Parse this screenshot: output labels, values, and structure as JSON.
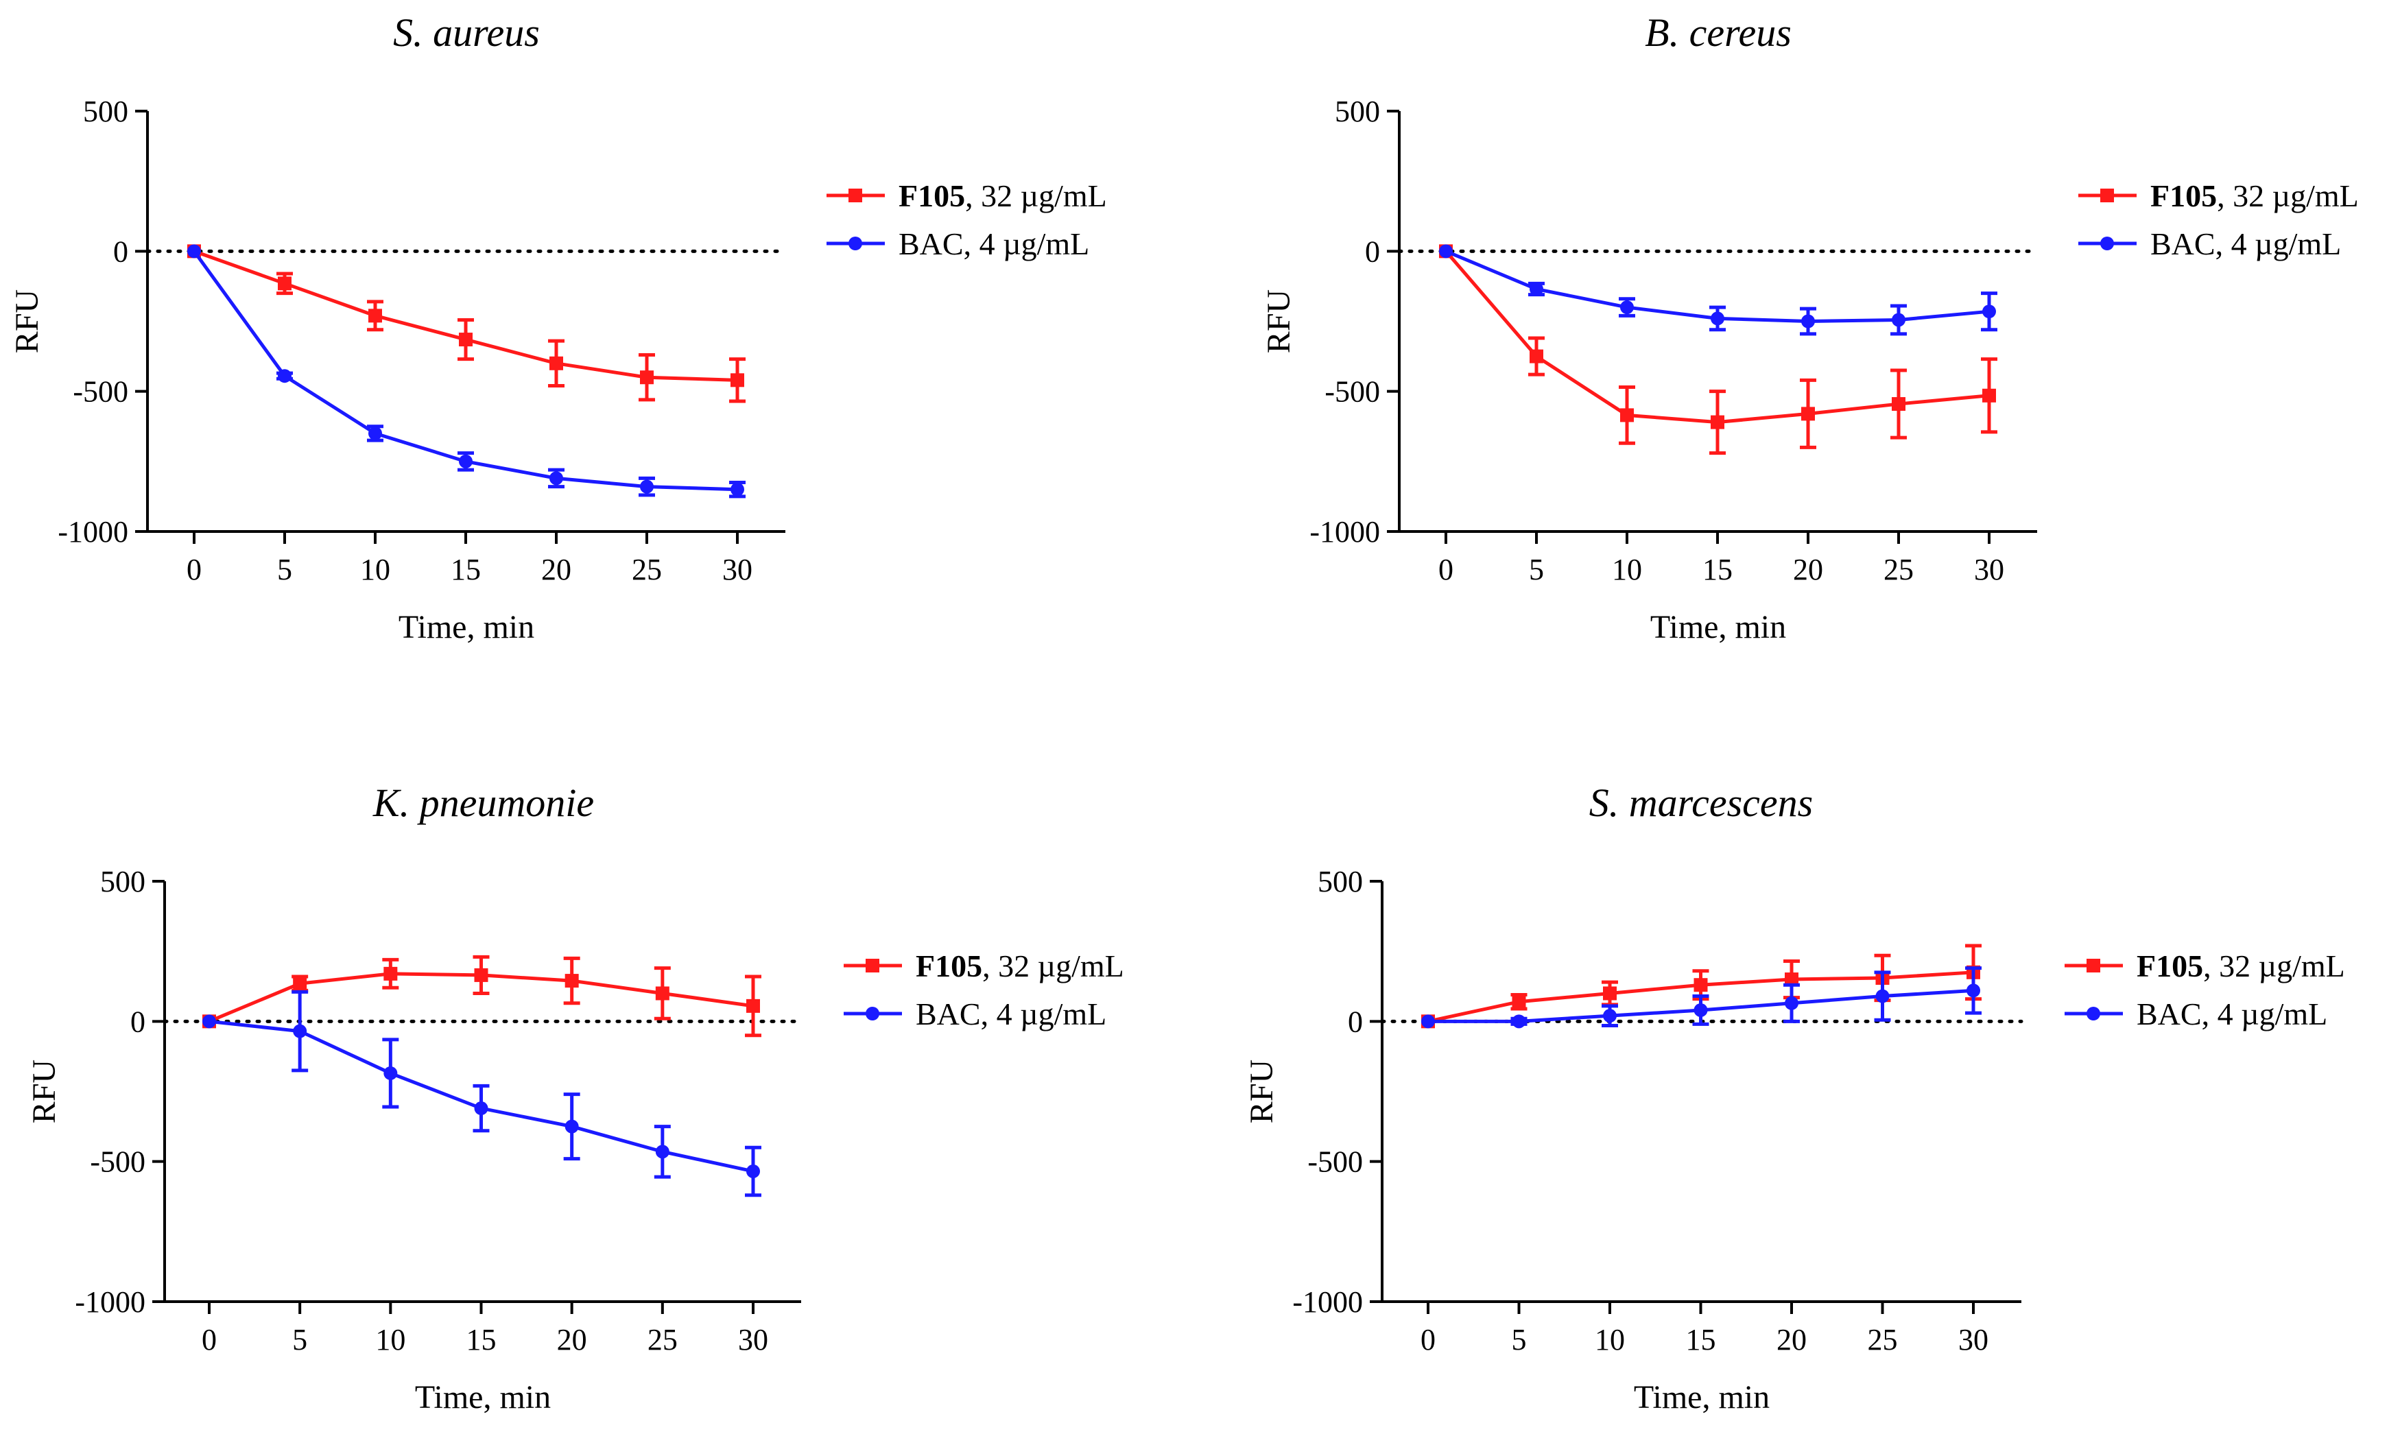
{
  "chart_data": [
    {
      "type": "line",
      "title": "S. aureus",
      "xlabel": "Time, min",
      "ylabel": "RFU",
      "x": [
        0,
        5,
        10,
        15,
        20,
        25,
        30
      ],
      "xticks": [
        "0",
        "5",
        "10",
        "15",
        "20",
        "25",
        "30"
      ],
      "yticks": [
        "500",
        "0",
        "-500",
        "-1000"
      ],
      "ylim": [
        -1000,
        500
      ],
      "reference_line": 0,
      "series": [
        {
          "name": "F105",
          "name_suffix": ", 32 µg/mL",
          "color": "#ff1a1a",
          "marker": "square",
          "values": [
            0,
            -115,
            -230,
            -315,
            -400,
            -450,
            -460
          ],
          "errors": [
            0,
            35,
            50,
            70,
            80,
            80,
            75
          ]
        },
        {
          "name": "BAC",
          "name_suffix": ", 4 µg/mL",
          "color": "#1a1aff",
          "marker": "circle",
          "values": [
            0,
            -445,
            -650,
            -750,
            -810,
            -840,
            -850
          ],
          "errors": [
            0,
            10,
            25,
            30,
            30,
            30,
            25
          ]
        }
      ]
    },
    {
      "type": "line",
      "title": "B. cereus",
      "xlabel": "Time, min",
      "ylabel": "RFU",
      "x": [
        0,
        5,
        10,
        15,
        20,
        25,
        30
      ],
      "xticks": [
        "0",
        "5",
        "10",
        "15",
        "20",
        "25",
        "30"
      ],
      "yticks": [
        "500",
        "0",
        "-500",
        "-1000"
      ],
      "ylim": [
        -1000,
        500
      ],
      "reference_line": 0,
      "series": [
        {
          "name": "F105",
          "name_suffix": ", 32 µg/mL",
          "color": "#ff1a1a",
          "marker": "square",
          "values": [
            0,
            -375,
            -585,
            -610,
            -580,
            -545,
            -515
          ],
          "errors": [
            0,
            65,
            100,
            110,
            120,
            120,
            130
          ]
        },
        {
          "name": "BAC",
          "name_suffix": ", 4 µg/mL",
          "color": "#1a1aff",
          "marker": "circle",
          "values": [
            0,
            -135,
            -200,
            -240,
            -250,
            -245,
            -215
          ],
          "errors": [
            0,
            20,
            30,
            40,
            45,
            50,
            65
          ]
        }
      ]
    },
    {
      "type": "line",
      "title": "K. pneumonie",
      "xlabel": "Time, min",
      "ylabel": "RFU",
      "x": [
        0,
        5,
        10,
        15,
        20,
        25,
        30
      ],
      "xticks": [
        "0",
        "5",
        "10",
        "15",
        "20",
        "25",
        "30"
      ],
      "yticks": [
        "500",
        "0",
        "-500",
        "-1000"
      ],
      "ylim": [
        -1000,
        500
      ],
      "reference_line": 0,
      "series": [
        {
          "name": "F105",
          "name_suffix": ", 32 µg/mL",
          "color": "#ff1a1a",
          "marker": "square",
          "values": [
            0,
            135,
            170,
            165,
            145,
            100,
            55
          ],
          "errors": [
            0,
            25,
            50,
            65,
            80,
            90,
            105
          ]
        },
        {
          "name": "BAC",
          "name_suffix": ", 4 µg/mL",
          "color": "#1a1aff",
          "marker": "circle",
          "values": [
            0,
            -35,
            -185,
            -310,
            -375,
            -465,
            -535
          ],
          "errors": [
            0,
            140,
            120,
            80,
            115,
            90,
            85
          ]
        }
      ]
    },
    {
      "type": "line",
      "title": "S. marcescens",
      "xlabel": "Time, min",
      "ylabel": "RFU",
      "x": [
        0,
        5,
        10,
        15,
        20,
        25,
        30
      ],
      "xticks": [
        "0",
        "5",
        "10",
        "15",
        "20",
        "25",
        "30"
      ],
      "yticks": [
        "500",
        "0",
        "-500",
        "-1000"
      ],
      "ylim": [
        -1000,
        500
      ],
      "reference_line": 0,
      "series": [
        {
          "name": "F105",
          "name_suffix": ", 32 µg/mL",
          "color": "#ff1a1a",
          "marker": "square",
          "values": [
            0,
            70,
            100,
            130,
            150,
            155,
            175
          ],
          "errors": [
            0,
            25,
            40,
            50,
            65,
            80,
            95
          ]
        },
        {
          "name": "BAC",
          "name_suffix": ", 4 µg/mL",
          "color": "#1a1aff",
          "marker": "circle",
          "values": [
            0,
            0,
            20,
            40,
            65,
            90,
            110
          ],
          "errors": [
            0,
            10,
            35,
            50,
            65,
            85,
            80
          ]
        }
      ]
    }
  ]
}
